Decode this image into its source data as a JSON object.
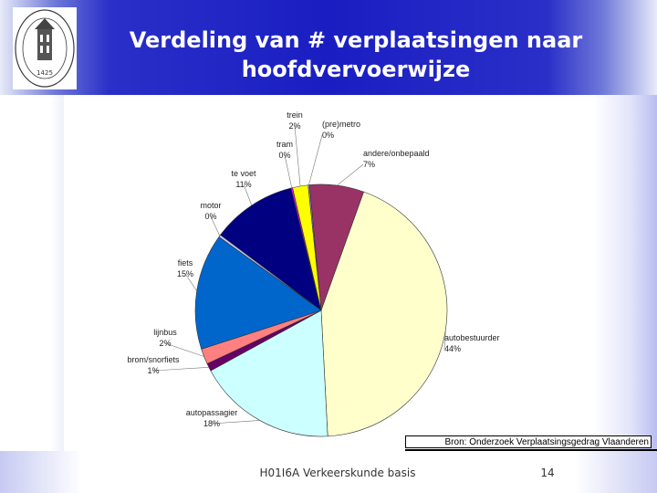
{
  "slide": {
    "title_line1": "Verdeling van # verplaatsingen naar",
    "title_line2": "hoofdvervoerwijze",
    "source": "Bron: Onderzoek Verplaatsingsgedrag Vlaanderen",
    "course": "H01I6A Verkeerskunde basis",
    "page": "14"
  },
  "logo": {
    "year": "1425",
    "icon": "university-seal-icon"
  },
  "colors": {
    "header_blue": "#1a1ec2",
    "title_text": "#ffffff"
  },
  "chart_data": {
    "type": "pie",
    "title": "",
    "slices": [
      {
        "name": "(pre)metro",
        "percent_label": "0%",
        "value": 0.2,
        "color": "#8080ff"
      },
      {
        "name": "andere/onbepaald",
        "percent_label": "7%",
        "value": 7,
        "color": "#993366"
      },
      {
        "name": "autobestuurder",
        "percent_label": "44%",
        "value": 44,
        "color": "#ffffcc"
      },
      {
        "name": "autopassagier",
        "percent_label": "18%",
        "value": 18,
        "color": "#ccffff"
      },
      {
        "name": "brom/snorfiets",
        "percent_label": "1%",
        "value": 1,
        "color": "#660066"
      },
      {
        "name": "lijnbus",
        "percent_label": "2%",
        "value": 2,
        "color": "#ff8080"
      },
      {
        "name": "fiets",
        "percent_label": "15%",
        "value": 15,
        "color": "#0066cc"
      },
      {
        "name": "motor",
        "percent_label": "0%",
        "value": 0.3,
        "color": "#ccccff"
      },
      {
        "name": "te voet",
        "percent_label": "11%",
        "value": 11,
        "color": "#000080"
      },
      {
        "name": "tram",
        "percent_label": "0%",
        "value": 0.2,
        "color": "#ff00ff"
      },
      {
        "name": "trein",
        "percent_label": "2%",
        "value": 2,
        "color": "#ffff00"
      }
    ]
  }
}
